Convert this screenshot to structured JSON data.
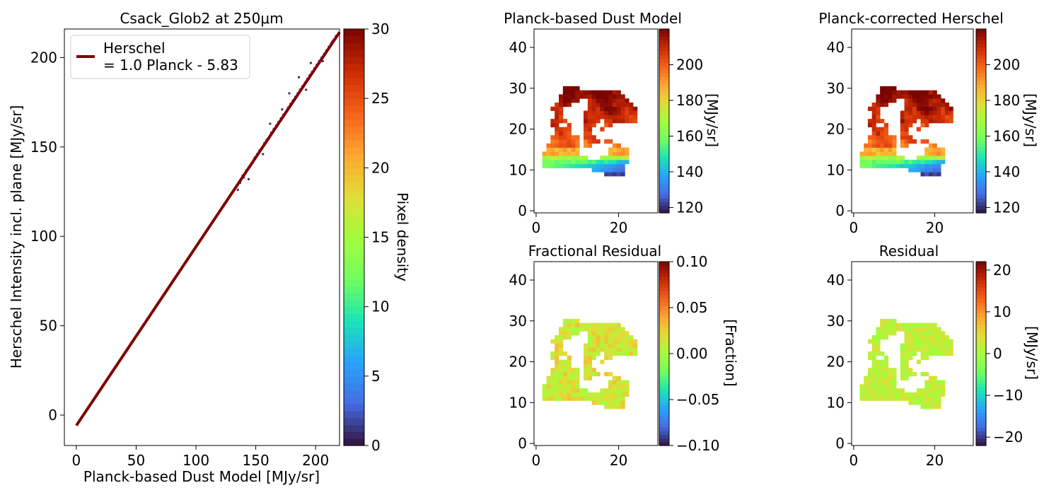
{
  "figure": {
    "background": "#ffffff",
    "text_color": "#000000"
  },
  "chart_data": [
    {
      "type": "scatter",
      "title": "Csack_Glob2 at 250μm",
      "xlabel": "Planck-based Dust Model [MJy/sr]",
      "ylabel": "Herschel Intensity incl. plane [MJy/sr]",
      "xlim": [
        -10,
        220
      ],
      "ylim": [
        -17,
        216
      ],
      "xticks": [
        0,
        50,
        100,
        150,
        200
      ],
      "yticks": [
        0,
        50,
        100,
        150,
        200
      ],
      "grid": false,
      "legend": {
        "placement": "top-left",
        "entries": [
          {
            "label_line1": "Herschel",
            "label_line2": "= 1.0 Planck - 5.83",
            "color": "#800000"
          }
        ]
      },
      "fit_line": {
        "slope": 1.0,
        "intercept": -5.83,
        "x_range": [
          0,
          220
        ],
        "color": "#800000"
      },
      "density_points": [
        [
          130,
          124,
          2
        ],
        [
          134,
          128,
          2
        ],
        [
          137,
          130,
          1
        ],
        [
          139,
          134,
          2
        ],
        [
          142,
          137,
          3
        ],
        [
          145,
          139,
          2
        ],
        [
          147,
          141,
          1
        ],
        [
          149,
          144,
          2
        ],
        [
          151,
          146,
          3
        ],
        [
          153,
          148,
          2
        ],
        [
          155,
          149,
          1
        ],
        [
          157,
          152,
          2
        ],
        [
          159,
          154,
          3
        ],
        [
          161,
          155,
          2
        ],
        [
          163,
          158,
          1
        ],
        [
          165,
          160,
          2
        ],
        [
          167,
          162,
          3
        ],
        [
          169,
          164,
          2
        ],
        [
          171,
          166,
          1
        ],
        [
          173,
          168,
          2
        ],
        [
          175,
          169,
          3
        ],
        [
          177,
          172,
          2
        ],
        [
          179,
          174,
          1
        ],
        [
          181,
          176,
          2
        ],
        [
          183,
          178,
          3
        ],
        [
          185,
          180,
          2
        ],
        [
          187,
          182,
          1
        ],
        [
          189,
          184,
          2
        ],
        [
          191,
          186,
          3
        ],
        [
          193,
          188,
          2
        ],
        [
          195,
          190,
          1
        ],
        [
          197,
          192,
          2
        ],
        [
          199,
          194,
          3
        ],
        [
          201,
          196,
          2
        ],
        [
          203,
          198,
          1
        ],
        [
          205,
          200,
          2
        ],
        [
          207,
          202,
          3
        ],
        [
          209,
          204,
          2
        ],
        [
          211,
          206,
          1
        ],
        [
          213,
          208,
          2
        ],
        [
          215,
          210,
          3
        ],
        [
          217,
          212,
          2
        ],
        [
          140,
          133,
          1
        ],
        [
          156,
          146,
          1
        ],
        [
          172,
          171,
          1
        ],
        [
          186,
          189,
          1
        ],
        [
          196,
          197,
          1
        ],
        [
          144,
          132,
          1
        ],
        [
          162,
          163,
          1
        ],
        [
          178,
          180,
          1
        ],
        [
          192,
          182,
          1
        ],
        [
          206,
          198,
          1
        ],
        [
          214,
          209,
          1
        ],
        [
          135,
          126,
          1
        ]
      ],
      "colorbar": {
        "label": "Pixel density",
        "range": [
          0,
          30
        ],
        "ticks": [
          0,
          5,
          10,
          15,
          20,
          25,
          30
        ],
        "colormap": "turbo"
      }
    },
    {
      "type": "heatmap",
      "title": "Planck-based Dust Model",
      "xlim": [
        -0.5,
        29.5
      ],
      "ylim": [
        -0.5,
        44.5
      ],
      "xticks": [
        0,
        20
      ],
      "yticks": [
        0,
        10,
        20,
        30,
        40
      ],
      "field": "model",
      "colorbar": {
        "label": "[MJy/sr]",
        "range": [
          117,
          220
        ],
        "ticks": [
          120,
          140,
          160,
          180,
          200
        ],
        "tick_labels": [
          "120",
          "140",
          "160",
          "180",
          "200"
        ],
        "colormap": "turbo"
      }
    },
    {
      "type": "heatmap",
      "title": "Planck-corrected Herschel",
      "xlim": [
        -0.5,
        29.5
      ],
      "ylim": [
        -0.5,
        44.5
      ],
      "xticks": [
        0,
        20
      ],
      "yticks": [
        0,
        10,
        20,
        30,
        40
      ],
      "field": "corrected",
      "colorbar": {
        "label": "[MJy/sr]",
        "range": [
          117,
          220
        ],
        "ticks": [
          120,
          140,
          160,
          180,
          200
        ],
        "tick_labels": [
          "120",
          "140",
          "160",
          "180",
          "200"
        ],
        "colormap": "turbo"
      }
    },
    {
      "type": "heatmap",
      "title": "Fractional Residual",
      "xlim": [
        -0.5,
        29.5
      ],
      "ylim": [
        -0.5,
        44.5
      ],
      "xticks": [
        0,
        20
      ],
      "yticks": [
        0,
        10,
        20,
        30,
        40
      ],
      "field": "fractional_residual",
      "colorbar": {
        "label": "[Fraction]",
        "range": [
          -0.1,
          0.1
        ],
        "ticks": [
          -0.1,
          -0.05,
          0.0,
          0.05,
          0.1
        ],
        "tick_labels": [
          "−0.10",
          "−0.05",
          "0.00",
          "0.05",
          "0.10"
        ],
        "colormap": "turbo"
      }
    },
    {
      "type": "heatmap",
      "title": "Residual",
      "xlim": [
        -0.5,
        29.5
      ],
      "ylim": [
        -0.5,
        44.5
      ],
      "xticks": [
        0,
        20
      ],
      "yticks": [
        0,
        10,
        20,
        30,
        40
      ],
      "field": "residual",
      "colorbar": {
        "label": "[MJy/sr]",
        "range": [
          -22,
          22
        ],
        "ticks": [
          -20,
          -10,
          0,
          10,
          20
        ],
        "tick_labels": [
          "−20",
          "−10",
          "0",
          "10",
          "20"
        ],
        "colormap": "turbo"
      }
    }
  ],
  "map_data": {
    "row_spans": {
      "9": [
        [
          17,
          21
        ]
      ],
      "10": [
        [
          14,
          21
        ]
      ],
      "11": [
        [
          2,
          21
        ]
      ],
      "12": [
        [
          2,
          22
        ]
      ],
      "13": [
        [
          2,
          12
        ],
        [
          16,
          22
        ]
      ],
      "14": [
        [
          2,
          10
        ],
        [
          18,
          22
        ]
      ],
      "15": [
        [
          3,
          10
        ],
        [
          18,
          22
        ]
      ],
      "16": [
        [
          3,
          10
        ],
        [
          12,
          13
        ],
        [
          19,
          20
        ]
      ],
      "17": [
        [
          4,
          10
        ],
        [
          12,
          15
        ],
        [
          17,
          18
        ]
      ],
      "18": [
        [
          4,
          10
        ],
        [
          12,
          14
        ]
      ],
      "19": [
        [
          5,
          8
        ],
        [
          12,
          13
        ]
      ],
      "20": [
        [
          5,
          8
        ],
        [
          12,
          13
        ],
        [
          16,
          16
        ]
      ],
      "21": [
        [
          4,
          5
        ],
        [
          8,
          8
        ],
        [
          12,
          14
        ],
        [
          17,
          18
        ]
      ],
      "22": [
        [
          4,
          7
        ],
        [
          12,
          15
        ],
        [
          17,
          24
        ]
      ],
      "23": [
        [
          5,
          6
        ],
        [
          12,
          24
        ]
      ],
      "24": [
        [
          5,
          6
        ],
        [
          12,
          24
        ]
      ],
      "25": [
        [
          4,
          6
        ],
        [
          13,
          24
        ]
      ],
      "26": [
        [
          5,
          8
        ],
        [
          13,
          23
        ]
      ],
      "27": [
        [
          6,
          10
        ],
        [
          13,
          22
        ]
      ],
      "28": [
        [
          6,
          21
        ]
      ],
      "29": [
        [
          7,
          20
        ]
      ],
      "30": [
        [
          7,
          10
        ]
      ]
    }
  }
}
